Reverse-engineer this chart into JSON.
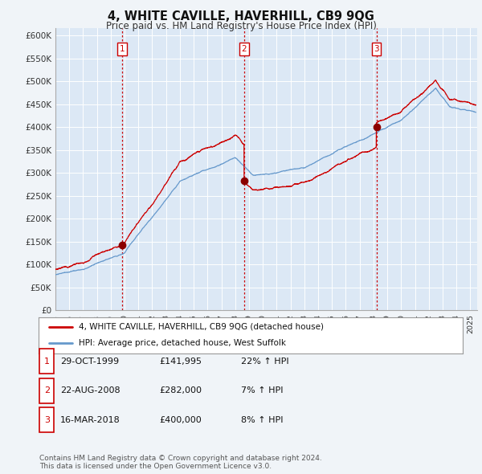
{
  "title": "4, WHITE CAVILLE, HAVERHILL, CB9 9QG",
  "subtitle": "Price paid vs. HM Land Registry's House Price Index (HPI)",
  "ylabel_ticks": [
    "£0",
    "£50K",
    "£100K",
    "£150K",
    "£200K",
    "£250K",
    "£300K",
    "£350K",
    "£400K",
    "£450K",
    "£500K",
    "£550K",
    "£600K"
  ],
  "ytick_values": [
    0,
    50000,
    100000,
    150000,
    200000,
    250000,
    300000,
    350000,
    400000,
    450000,
    500000,
    550000,
    600000
  ],
  "ylim": [
    0,
    615000
  ],
  "xlim_start": 1995.0,
  "xlim_end": 2025.5,
  "sale_dates": [
    1999.83,
    2008.64,
    2018.21
  ],
  "sale_prices": [
    141995,
    282000,
    400000
  ],
  "sale_labels": [
    "1",
    "2",
    "3"
  ],
  "vline_color": "#cc0000",
  "hpi_color": "#6699cc",
  "price_color": "#cc0000",
  "plot_bg_color": "#dce8f5",
  "bg_color": "#f0f4f8",
  "legend_entries": [
    "4, WHITE CAVILLE, HAVERHILL, CB9 9QG (detached house)",
    "HPI: Average price, detached house, West Suffolk"
  ],
  "table_rows": [
    [
      "1",
      "29-OCT-1999",
      "£141,995",
      "22% ↑ HPI"
    ],
    [
      "2",
      "22-AUG-2008",
      "£282,000",
      "7% ↑ HPI"
    ],
    [
      "3",
      "16-MAR-2018",
      "£400,000",
      "8% ↑ HPI"
    ]
  ],
  "footnote": "Contains HM Land Registry data © Crown copyright and database right 2024.\nThis data is licensed under the Open Government Licence v3.0."
}
